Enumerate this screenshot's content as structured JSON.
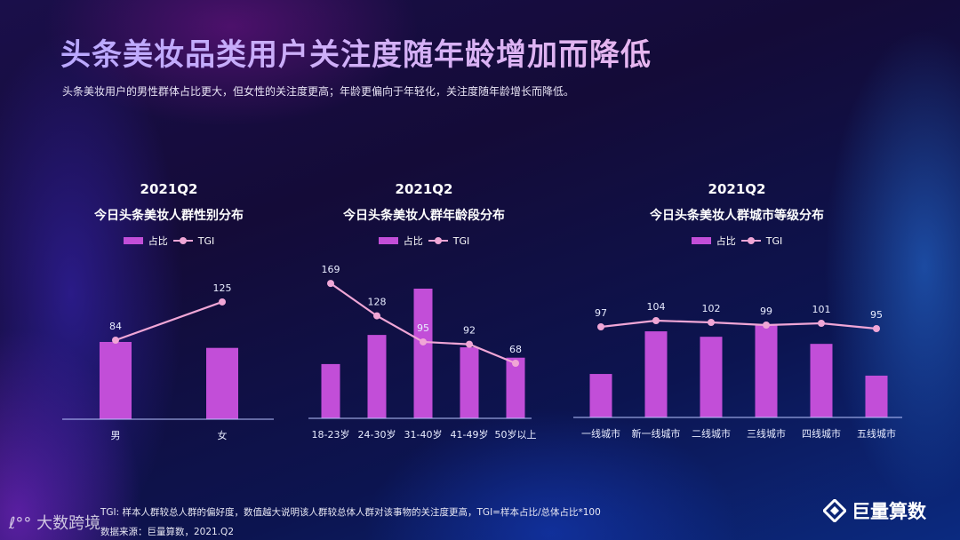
{
  "header": {
    "title": "头条美妆品类用户关注度随年龄增加而降低",
    "subtitle": "头条美妆用户的男性群体占比更大，但女性的关注度更高；年龄更偏向于年轻化，关注度随年龄增长而降低。"
  },
  "legend": {
    "bar": "占比",
    "line": "TGI"
  },
  "colors": {
    "bar": "#c24ed8",
    "line": "#f0a6d6",
    "axis": "#b9c4ff"
  },
  "chart_data": [
    {
      "type": "bar+line",
      "period": "2021Q2",
      "title": "今日头条美妆人群性别分布",
      "categories": [
        "男",
        "女"
      ],
      "series": [
        {
          "name": "占比",
          "type": "bar",
          "values": [
            52,
            48
          ]
        },
        {
          "name": "TGI",
          "type": "line",
          "values": [
            84,
            125
          ]
        }
      ]
    },
    {
      "type": "bar+line",
      "period": "2021Q2",
      "title": "今日头条美妆人群年龄段分布",
      "categories": [
        "18-23岁",
        "24-30岁",
        "31-40岁",
        "41-49岁",
        "50岁以上"
      ],
      "series": [
        {
          "name": "占比",
          "type": "bar",
          "values": [
            13.6,
            20.9,
            32.5,
            17.8,
            15.2
          ]
        },
        {
          "name": "TGI",
          "type": "line",
          "values": [
            169,
            128,
            95,
            92,
            68
          ]
        }
      ]
    },
    {
      "type": "bar+line",
      "period": "2021Q2",
      "title": "今日头条美妆人群城市等级分布",
      "categories": [
        "一线城市",
        "新一线城市",
        "二线城市",
        "三线城市",
        "四线城市",
        "五线城市"
      ],
      "series": [
        {
          "name": "占比",
          "type": "bar",
          "values": [
            10.4,
            20.6,
            19.3,
            22.1,
            17.6,
            10.0
          ]
        },
        {
          "name": "TGI",
          "type": "line",
          "values": [
            97,
            104,
            102,
            99,
            101,
            95
          ]
        }
      ]
    }
  ],
  "footer": {
    "note": "TGI: 样本人群较总人群的偏好度，数值越大说明该人群较总体人群对该事物的关注度更高，TGI=样本占比/总体占比*100",
    "source": "数据来源：巨量算数，2021.Q2",
    "watermark": "大数跨境",
    "brand": "巨量算数"
  }
}
